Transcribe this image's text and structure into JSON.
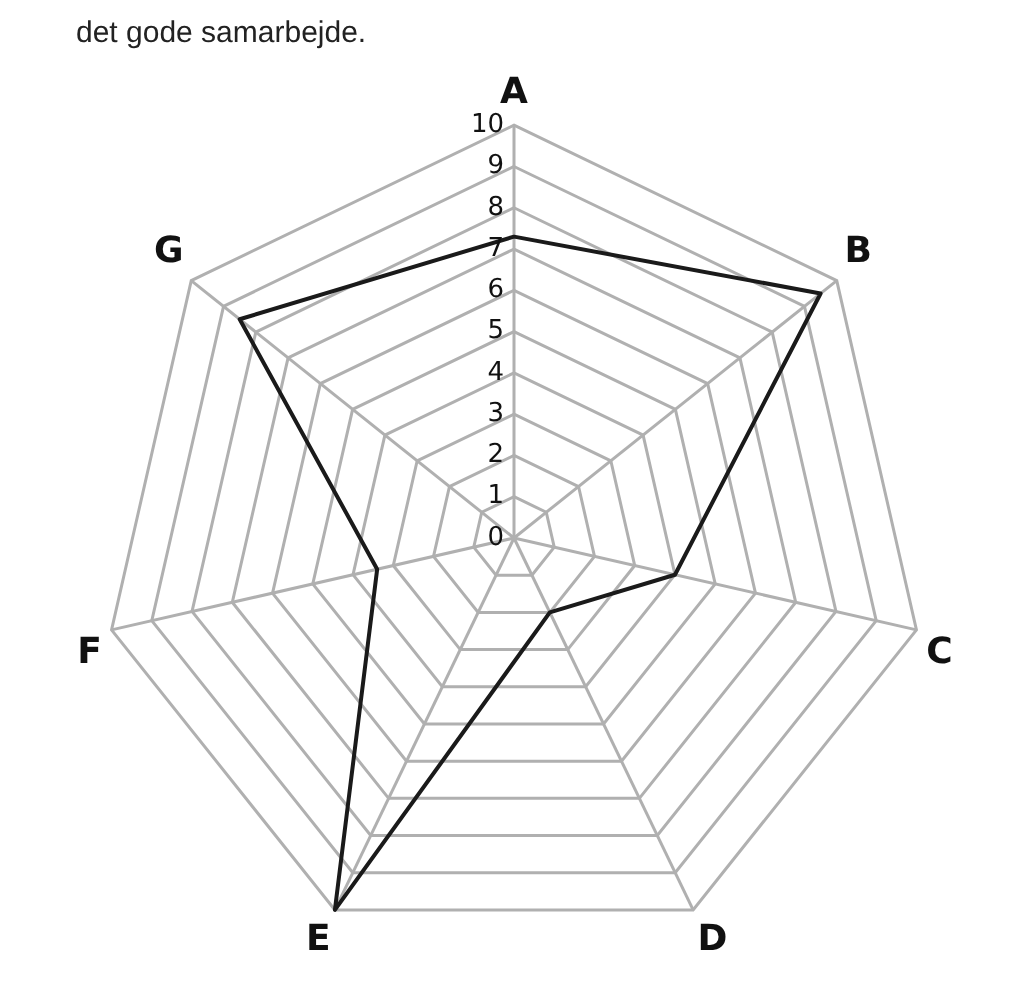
{
  "chart_data": {
    "type": "radar",
    "annotations": [
      "det gode samarbejde."
    ],
    "categories": [
      "A",
      "B",
      "C",
      "D",
      "E",
      "F",
      "G"
    ],
    "series": [
      {
        "color": "#1a1a1a",
        "values": [
          7.3,
          9.5,
          4,
          2,
          10,
          3.4,
          8.5
        ]
      }
    ],
    "ylim": [
      0,
      10
    ],
    "yticks": [
      0,
      1,
      2,
      3,
      4,
      5,
      6,
      7,
      8,
      9,
      10
    ],
    "grid": true,
    "legend": false,
    "marker": "none",
    "line_style": "solid"
  }
}
